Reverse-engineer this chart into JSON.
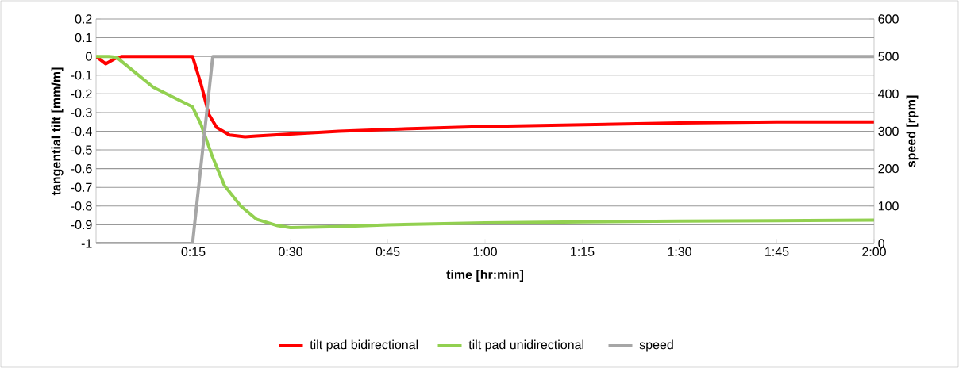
{
  "chart_data": {
    "type": "line",
    "xlabel": "time [hr:min]",
    "ylabel": "tangential tilt [mm/m]",
    "y2label": "speed [rpm]",
    "xlim": [
      0,
      2
    ],
    "ylim": [
      -1,
      0.2
    ],
    "y2lim": [
      0,
      600
    ],
    "xticks": [
      {
        "value": 0.25,
        "label": "0:15"
      },
      {
        "value": 0.5,
        "label": "0:30"
      },
      {
        "value": 0.75,
        "label": "0:45"
      },
      {
        "value": 1,
        "label": "1:00"
      },
      {
        "value": 1.25,
        "label": "1:15"
      },
      {
        "value": 1.5,
        "label": "1:30"
      },
      {
        "value": 1.75,
        "label": "1:45"
      },
      {
        "value": 2,
        "label": "2:00"
      }
    ],
    "yticks": [
      -1,
      -0.9,
      -0.8,
      -0.7,
      -0.6,
      -0.5,
      -0.4,
      -0.3,
      -0.2,
      -0.1,
      0,
      0.1,
      0.2
    ],
    "y2ticks": [
      0,
      100,
      200,
      300,
      400,
      500,
      600
    ],
    "grid": "y",
    "legend": "bottom",
    "marker": "none",
    "line_style": "solid",
    "series": [
      {
        "name": "tilt pad bidirectional",
        "color": "#ff0000",
        "x": [
          0,
          0.025,
          0.05,
          0.067,
          0.1,
          0.2,
          0.248,
          0.27,
          0.29,
          0.31,
          0.343,
          0.383,
          0.412,
          0.5,
          0.625,
          0.75,
          1.0,
          1.25,
          1.5,
          1.75,
          2.0
        ],
        "values": [
          0,
          -0.04,
          -0.01,
          0,
          0,
          0,
          0,
          -0.15,
          -0.31,
          -0.38,
          -0.42,
          -0.43,
          -0.425,
          -0.415,
          -0.4,
          -0.39,
          -0.375,
          -0.365,
          -0.355,
          -0.35,
          -0.35
        ]
      },
      {
        "name": "tilt pad unidirectional",
        "color": "#92d050",
        "x": [
          0,
          0.033,
          0.053,
          0.147,
          0.248,
          0.27,
          0.298,
          0.33,
          0.372,
          0.412,
          0.467,
          0.5,
          0.625,
          0.75,
          1.0,
          1.25,
          1.5,
          1.75,
          2.0
        ],
        "values": [
          0,
          0,
          -0.005,
          -0.165,
          -0.27,
          -0.365,
          -0.53,
          -0.69,
          -0.8,
          -0.87,
          -0.905,
          -0.915,
          -0.91,
          -0.9,
          -0.89,
          -0.885,
          -0.88,
          -0.878,
          -0.875
        ]
      },
      {
        "name": "speed",
        "color": "#a6a6a6",
        "axis": "y2",
        "x": [
          0,
          0.248,
          0.3,
          2.0
        ],
        "values": [
          0,
          0,
          500,
          500
        ]
      }
    ]
  }
}
